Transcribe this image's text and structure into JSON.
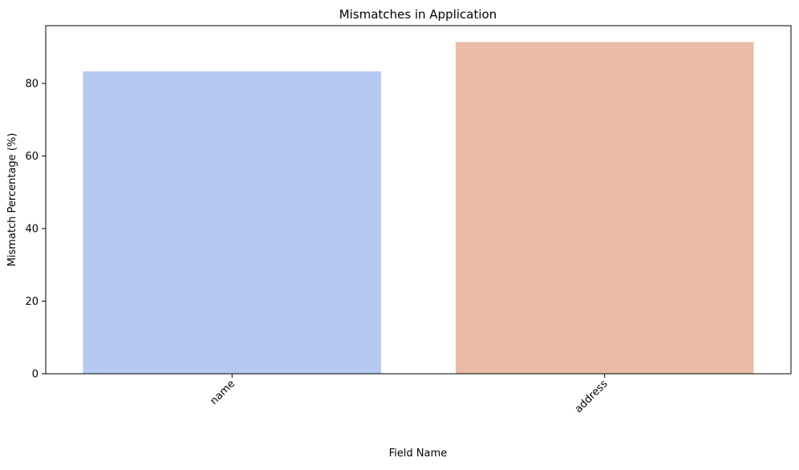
{
  "chart_data": {
    "type": "bar",
    "title": "Mismatches in Application",
    "xlabel": "Field Name",
    "ylabel": "Mismatch Percentage (%)",
    "categories": [
      "name",
      "address"
    ],
    "values": [
      83.3,
      91.4
    ],
    "colors": [
      "#b5c9f2",
      "#eabba6"
    ],
    "ylim": [
      0,
      95.9
    ],
    "yticks": [
      0,
      20,
      40,
      60,
      80
    ],
    "ytick_labels": [
      "0",
      "20",
      "40",
      "60",
      "80"
    ],
    "grid": false,
    "legend": "none"
  }
}
